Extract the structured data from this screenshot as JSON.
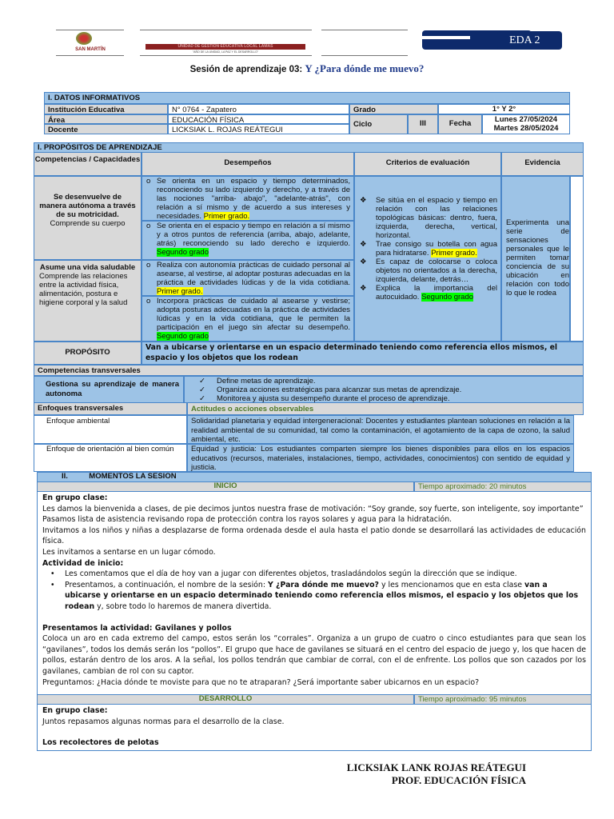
{
  "header": {
    "logo_text": "SAN MARTÍN",
    "ugel_banner": "UNIDAD DE GESTIÓN EDUCATIVA LOCAL LAMAS",
    "ugel_motto": "\"AÑO DE LA UNIDAD, LA PAZ Y EL DESARROLLO\"",
    "badge": "EDA 2",
    "title_prefix": "Sesión de aprendizaje 03:",
    "title_name": "Y ¿Para dónde me muevo?"
  },
  "datos": {
    "heading": "I.   DATOS INFORMATIVOS",
    "institucion_label": "Institución Educativa",
    "institucion": "N° 0764 - Zapatero",
    "area_label": "Área",
    "area": "EDUCACIÓN FÍSICA",
    "docente_label": "Docente",
    "docente": "LICKSIAK L. ROJAS REÁTEGUI",
    "grado_label": "Grado",
    "grado": "1°  Y 2°",
    "ciclo_label": "Ciclo",
    "ciclo": "III",
    "fecha_label": "Fecha",
    "fecha1": "Lunes 27/05/2024",
    "fecha2": "Martes 28/05/2024"
  },
  "propositos": {
    "heading": "I.        PROPÓSITOS DE APRENDIZAJE",
    "col_comp": "Competencias / Capacidades",
    "col_desemp": "Desempeños",
    "col_crit": "Criterios de evaluación",
    "col_evid": "Evidencia",
    "comp1_title": "Se desenvuelve de manera autónoma a través de su motricidad.",
    "comp1_cap": "Comprende su cuerpo",
    "comp2_title": "Asume una vida saludable",
    "comp2_cap": "Comprende las relaciones entre la actividad física, alimentación, postura e higiene corporal y la salud",
    "desemp": [
      {
        "text": "Se orienta en un espacio y tiempo determinados, reconociendo su lado izquierdo y derecho, y a través de las nociones \"arriba- abajo\", \"adelante-atrás\", con relación a sí mismo y de acuerdo a sus intereses y necesidades.",
        "tag": "Primer grado."
      },
      {
        "text": "Se orienta en el espacio y tiempo en relación a sí mismo y a otros puntos de referencia (arriba, abajo, adelante, atrás) reconociendo su lado derecho e izquierdo.",
        "tag": "Segundo grado"
      },
      {
        "text": "Realiza con autonomía prácticas de cuidado personal al asearse, al vestirse, al adoptar posturas adecuadas en la práctica de actividades lúdicas y de la vida cotidiana.",
        "tag": "Primer grado."
      },
      {
        "text": "Incorpora prácticas de cuidado al asearse y vestirse; adopta posturas adecuadas en la práctica de actividades lúdicas y en la vida cotidiana, que le permiten la participación en el juego sin afectar su desempeño.",
        "tag": "Segundo grado"
      }
    ],
    "criterios": [
      {
        "text": "Se sitúa en el espacio y tiempo en relación con las relaciones topológicas básicas: dentro, fuera, izquierda, derecha, vertical, horizontal.",
        "tag": ""
      },
      {
        "text": "Trae consigo su botella con agua para hidratarse.",
        "tag": "Primer grado."
      },
      {
        "text": "Es capaz de colocarse o coloca objetos no orientados a la derecha, izquierda, delante, detrás…",
        "tag": ""
      },
      {
        "text": "Explica la importancia del autocuidado.",
        "tag": "Segundo grado"
      }
    ],
    "evidencia": "Experimenta una serie de sensaciones personales que le permiten tomar conciencia de su ubicación en relación con todo lo que le rodea",
    "proposito_label": "PROPÓSITO",
    "proposito": "Van a ubicarse y orientarse en un espacio determinado teniendo como referencia ellos mismos, el espacio y los objetos que los rodean"
  },
  "transversales": {
    "heading": "Competencias transversales",
    "comp": "Gestiona su aprendizaje de manera autonoma",
    "items": [
      "Define metas de aprendizaje.",
      "Organiza acciones estratégicas para alcanzar sus metas de aprendizaje.",
      "Monitorea y ajusta su desempeño durante el proceso de aprendizaje."
    ],
    "enfoques_heading": "Enfoques transversales",
    "actitudes_heading": "Actitudes o acciones observables",
    "enfoque1": "Enfoque ambiental",
    "enfoque1_text": "Solidaridad planetaria y equidad intergeneracional: Docentes y estudiantes plantean soluciones en relación a la realidad ambiental de su comunidad, tal como la contaminación, el agotamiento de la capa de ozono, la salud ambiental, etc.",
    "enfoque2": "Enfoque de orientación al bien común",
    "enfoque2_text": "Equidad y justicia: Los estudiantes comparten siempre los bienes disponibles para ellos en los espacios educativos (recursos, materiales, instalaciones, tiempo, actividades, conocimientos) con sentido de equidad y justicia."
  },
  "momentos": {
    "heading": "II.          MOMENTOS LA SESIÓN",
    "inicio": "INICIO",
    "inicio_tiempo": "Tiempo aproximado: 20 minutos",
    "inicio_body": {
      "h1": "En grupo clase:",
      "p1": "Les damos la bienvenida a clases, de pie decimos juntos nuestra frase de motivación: “Soy grande, soy fuerte, son inteligente, soy importante”",
      "p2": "Pasamos lista de asistencia revisando ropa de protección contra los rayos solares y agua para la hidratación.",
      "p3": "Invitamos a los niños y niñas a desplazarse de forma ordenada desde el aula hasta el patio donde se desarrollará las actividades de educación física.",
      "p4": "Les invitamos a sentarse en un lugar cómodo.",
      "h2": "Actividad de inicio:",
      "b1": "Les comentamos que el día de hoy van a jugar con diferentes objetos, trasladándolos según la dirección que se indique.",
      "b2a": "Presentamos, a continuación, el nombre de la sesión: ",
      "b2b": "Y ¿Para dónde me muevo?",
      "b2c": " y les mencionamos que en esta clase ",
      "b2d": "van a ubicarse y orientarse en un espacio determinado teniendo como referencia ellos mismos, el espacio y los objetos que los rodean",
      "b2e": " y, sobre todo lo haremos de manera divertida.",
      "h3": "Presentamos la actividad: Gavilanes y pollos",
      "p5": "Coloca un aro en cada extremo del campo, estos serán los “corrales”. Organiza a un grupo de cuatro o cinco estudiantes para que sean los “gavilanes”, todos los demás serán los “pollos”. El grupo que hace de gavilanes se situará en el centro del espacio de juego y, los que hacen de pollos, estarán dentro de los aros. A la señal, los pollos tendrán que cambiar de corral, con el de enfrente. Los pollos que son cazados por los gavilanes, cambian de rol con su captor.",
      "p6": "Preguntamos: ¿Hacia dónde te moviste para que no te atraparan? ¿Será importante saber ubicarnos en un espacio?"
    },
    "desarrollo": "DESARROLLO",
    "desarrollo_tiempo": "Tiempo aproximado: 95 minutos",
    "desarrollo_body": {
      "h1": "En grupo clase:",
      "p1": "Juntos repasamos algunas normas para el desarrollo de la clase.",
      "h2": "Los recolectores de pelotas"
    }
  },
  "signature": {
    "name": "LICKSIAK LANK ROJAS REÁTEGUI",
    "role": "PROF. EDUCACIÓN FÍSICA"
  },
  "colors": {
    "table_blue": "#9dc3e6",
    "border": "#4a86c8",
    "navy": "#0d2a6b",
    "green_text": "#4f7a28",
    "highlight_yellow": "#ffff00",
    "highlight_green": "#00ff00"
  }
}
